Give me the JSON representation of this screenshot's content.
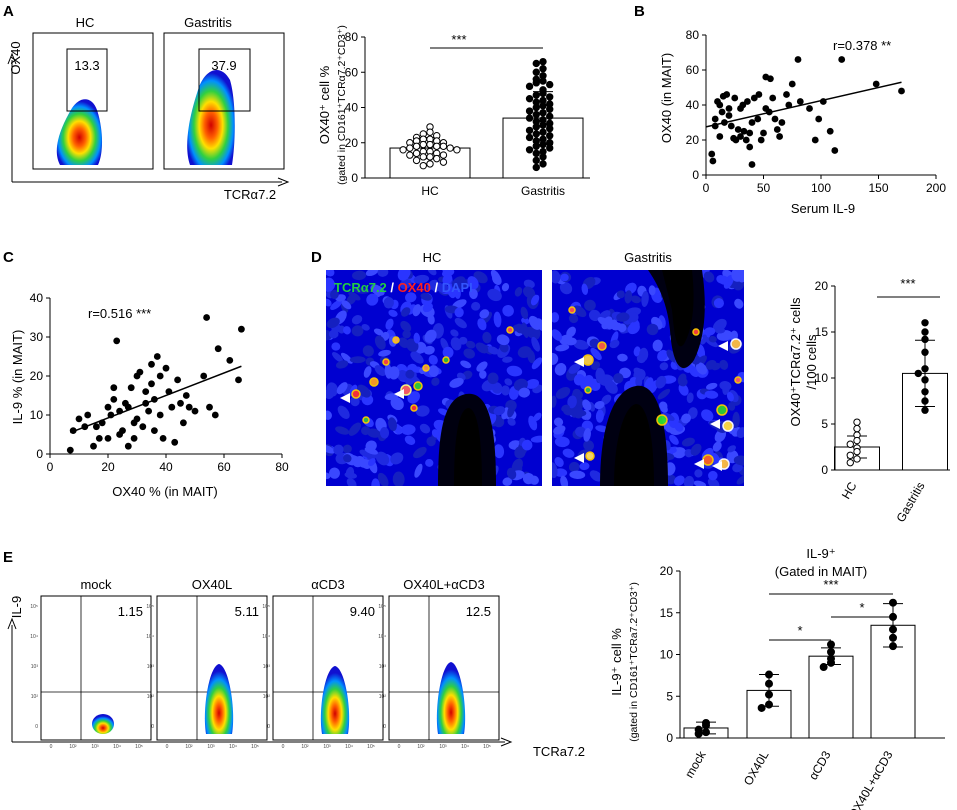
{
  "panels": {
    "A": "A",
    "B": "B",
    "C": "C",
    "D": "D",
    "E": "E"
  },
  "panel_a": {
    "flow": {
      "y_label": "OX40",
      "x_label": "TCRα7.2",
      "plots": [
        {
          "title": "HC",
          "gate_value": "13.3"
        },
        {
          "title": "Gastritis",
          "gate_value": "37.9"
        }
      ]
    },
    "bar": {
      "ylabel_line1": "OX40⁺ cell %",
      "ylabel_line2": "(gated in CD161⁺TCRα7.2⁺CD3⁺)",
      "significance": "***",
      "yticks": [
        "0",
        "20",
        "40",
        "60",
        "80"
      ]
    }
  },
  "panel_b": {
    "r_text": "r=0.378 **",
    "xlabel": "Serum IL-9",
    "ylabel": "OX40 (in MAIT)",
    "xticks": [
      "0",
      "50",
      "100",
      "150",
      "200"
    ],
    "yticks": [
      "0",
      "20",
      "40",
      "60",
      "80"
    ]
  },
  "panel_c": {
    "r_text": "r=0.516 ***",
    "xlabel": "OX40 % (in MAIT)",
    "ylabel": "IL-9 % (in MAIT)",
    "xticks": [
      "0",
      "20",
      "40",
      "60",
      "80"
    ],
    "yticks": [
      "0",
      "10",
      "20",
      "30",
      "40"
    ]
  },
  "panel_d": {
    "images": [
      {
        "title": "HC"
      },
      {
        "title": "Gastritis"
      }
    ],
    "legend": {
      "tcr": "TCRα7.2",
      "sep1": " / ",
      "ox40": "OX40",
      "sep2": " / ",
      "dapi": "DAPI"
    },
    "colors": {
      "tcr": "#22cc44",
      "ox40": "#ff2020",
      "dapi": "#2244ff"
    },
    "bar": {
      "ylabel_line1": "OX40⁺TCRα7.2⁺ cells",
      "ylabel_line2": "/100 cells",
      "significance": "***",
      "yticks": [
        "0",
        "5",
        "10",
        "15",
        "20"
      ]
    }
  },
  "panel_e": {
    "flow": {
      "y_label": "IL-9",
      "x_label": "TCRa7.2",
      "axis_ticks": {
        "y": [
          "10⁵",
          "10⁴",
          "10³",
          "10²",
          "0"
        ],
        "x": [
          "0",
          "10²",
          "10³",
          "10⁴",
          "10⁵"
        ]
      },
      "plots": [
        {
          "title": "mock",
          "value": "1.15"
        },
        {
          "title": "OX40L",
          "value": "5.11"
        },
        {
          "title": "αCD3",
          "value": "9.40"
        },
        {
          "title": "OX40L+αCD3",
          "value": "12.5"
        }
      ]
    },
    "bar": {
      "title_line1": "IL-9⁺",
      "title_line2": "(Gated in MAIT)",
      "ylabel_line1": "IL-9⁺ cell %",
      "ylabel_line2": "(gated in CD161⁺TCRa7.2⁺CD3⁺)",
      "yticks": [
        "0",
        "5",
        "10",
        "15",
        "20"
      ],
      "sig": [
        "*",
        "***",
        "*"
      ]
    }
  },
  "chart_data": [
    {
      "type": "bar",
      "id": "A-right",
      "categories": [
        "HC",
        "Gastritis"
      ],
      "values": [
        17,
        34
      ],
      "sd": [
        6,
        15
      ],
      "ylim": [
        0,
        80
      ],
      "points": {
        "HC": [
          29,
          26,
          25,
          24,
          23,
          22,
          22,
          21,
          21,
          20,
          20,
          19,
          19,
          18,
          18,
          18,
          17,
          17,
          16,
          16,
          15,
          15,
          14,
          14,
          13,
          13,
          12,
          12,
          11,
          10,
          9,
          8,
          7
        ],
        "Gastritis": [
          66,
          65,
          62,
          60,
          58,
          56,
          55,
          54,
          53,
          52,
          50,
          48,
          47,
          46,
          45,
          44,
          43,
          42,
          41,
          40,
          39,
          38,
          37,
          36,
          35,
          34,
          33,
          32,
          31,
          30,
          29,
          28,
          27,
          26,
          25,
          24,
          23,
          22,
          21,
          20,
          19,
          18,
          17,
          16,
          15,
          14,
          12,
          10,
          8,
          6
        ]
      }
    },
    {
      "type": "scatter",
      "id": "B",
      "xlim": [
        0,
        200
      ],
      "ylim": [
        0,
        80
      ],
      "points": [
        [
          5,
          12
        ],
        [
          6,
          8
        ],
        [
          8,
          28
        ],
        [
          8,
          32
        ],
        [
          10,
          42
        ],
        [
          12,
          22
        ],
        [
          12,
          40
        ],
        [
          14,
          36
        ],
        [
          15,
          45
        ],
        [
          16,
          30
        ],
        [
          18,
          46
        ],
        [
          20,
          34
        ],
        [
          20,
          38
        ],
        [
          22,
          28
        ],
        [
          24,
          21
        ],
        [
          25,
          44
        ],
        [
          26,
          20
        ],
        [
          28,
          26
        ],
        [
          30,
          22
        ],
        [
          30,
          38
        ],
        [
          32,
          40
        ],
        [
          33,
          25
        ],
        [
          35,
          20
        ],
        [
          36,
          42
        ],
        [
          38,
          16
        ],
        [
          38,
          24
        ],
        [
          40,
          6
        ],
        [
          40,
          30
        ],
        [
          42,
          44
        ],
        [
          45,
          32
        ],
        [
          46,
          46
        ],
        [
          48,
          20
        ],
        [
          50,
          24
        ],
        [
          52,
          38
        ],
        [
          52,
          56
        ],
        [
          55,
          36
        ],
        [
          56,
          55
        ],
        [
          58,
          44
        ],
        [
          60,
          32
        ],
        [
          62,
          26
        ],
        [
          64,
          22
        ],
        [
          66,
          30
        ],
        [
          70,
          46
        ],
        [
          72,
          40
        ],
        [
          75,
          52
        ],
        [
          80,
          66
        ],
        [
          82,
          42
        ],
        [
          90,
          38
        ],
        [
          95,
          20
        ],
        [
          98,
          32
        ],
        [
          102,
          42
        ],
        [
          108,
          25
        ],
        [
          112,
          14
        ],
        [
          118,
          66
        ],
        [
          148,
          52
        ],
        [
          170,
          48
        ]
      ],
      "fit": [
        [
          0,
          27.5
        ],
        [
          170,
          53
        ]
      ]
    },
    {
      "type": "scatter",
      "id": "C",
      "xlim": [
        0,
        80
      ],
      "ylim": [
        0,
        40
      ],
      "points": [
        [
          7,
          1
        ],
        [
          8,
          6
        ],
        [
          10,
          9
        ],
        [
          12,
          7
        ],
        [
          13,
          10
        ],
        [
          15,
          2
        ],
        [
          16,
          7
        ],
        [
          17,
          4
        ],
        [
          18,
          8
        ],
        [
          20,
          12
        ],
        [
          20,
          4
        ],
        [
          21,
          10
        ],
        [
          22,
          17
        ],
        [
          22,
          14
        ],
        [
          23,
          29
        ],
        [
          24,
          11
        ],
        [
          24,
          5
        ],
        [
          25,
          6
        ],
        [
          26,
          13
        ],
        [
          27,
          12
        ],
        [
          27,
          2
        ],
        [
          28,
          17
        ],
        [
          29,
          8
        ],
        [
          29,
          4
        ],
        [
          30,
          20
        ],
        [
          30,
          9
        ],
        [
          31,
          21
        ],
        [
          32,
          7
        ],
        [
          33,
          13
        ],
        [
          33,
          16
        ],
        [
          34,
          11
        ],
        [
          35,
          23
        ],
        [
          35,
          18
        ],
        [
          36,
          14
        ],
        [
          36,
          6
        ],
        [
          37,
          25
        ],
        [
          38,
          10
        ],
        [
          38,
          20
        ],
        [
          39,
          4
        ],
        [
          40,
          22
        ],
        [
          41,
          16
        ],
        [
          42,
          12
        ],
        [
          43,
          3
        ],
        [
          44,
          19
        ],
        [
          45,
          13
        ],
        [
          46,
          8
        ],
        [
          47,
          15
        ],
        [
          48,
          12
        ],
        [
          50,
          11
        ],
        [
          53,
          20
        ],
        [
          54,
          35
        ],
        [
          55,
          12
        ],
        [
          57,
          10
        ],
        [
          58,
          27
        ],
        [
          62,
          24
        ],
        [
          65,
          19
        ],
        [
          66,
          32
        ]
      ],
      "fit": [
        [
          7,
          5.5
        ],
        [
          66,
          22.5
        ]
      ]
    },
    {
      "type": "bar",
      "id": "D-right",
      "categories": [
        "HC",
        "Gastritis"
      ],
      "values": [
        2.5,
        10.5
      ],
      "sd": [
        1.2,
        3.6
      ],
      "ylim": [
        0,
        20
      ],
      "points": {
        "HC": [
          5.2,
          4.5,
          3.8,
          3.2,
          2.8,
          2.4,
          2.0,
          1.6,
          1.2,
          0.8
        ],
        "Gastritis": [
          16,
          15,
          14.2,
          12.8,
          11,
          10.5,
          9.8,
          8.5,
          7.5,
          6.5
        ]
      }
    },
    {
      "type": "bar",
      "id": "E-right",
      "categories": [
        "mock",
        "OX40L",
        "αCD3",
        "OX40L+αCD3"
      ],
      "values": [
        1.2,
        5.7,
        9.8,
        13.5
      ],
      "sd": [
        0.7,
        1.9,
        1.0,
        2.6
      ],
      "ylim": [
        0,
        20
      ],
      "points": {
        "mock": [
          1.8,
          1.5,
          1.0,
          0.7,
          0.5
        ],
        "OX40L": [
          7.6,
          6.5,
          5.2,
          4.0,
          3.6
        ],
        "αCD3": [
          11.2,
          10.3,
          9.5,
          9.0,
          8.5
        ],
        "OX40L+αCD3": [
          16.2,
          14.5,
          13.0,
          12.0,
          11.0
        ]
      }
    }
  ]
}
